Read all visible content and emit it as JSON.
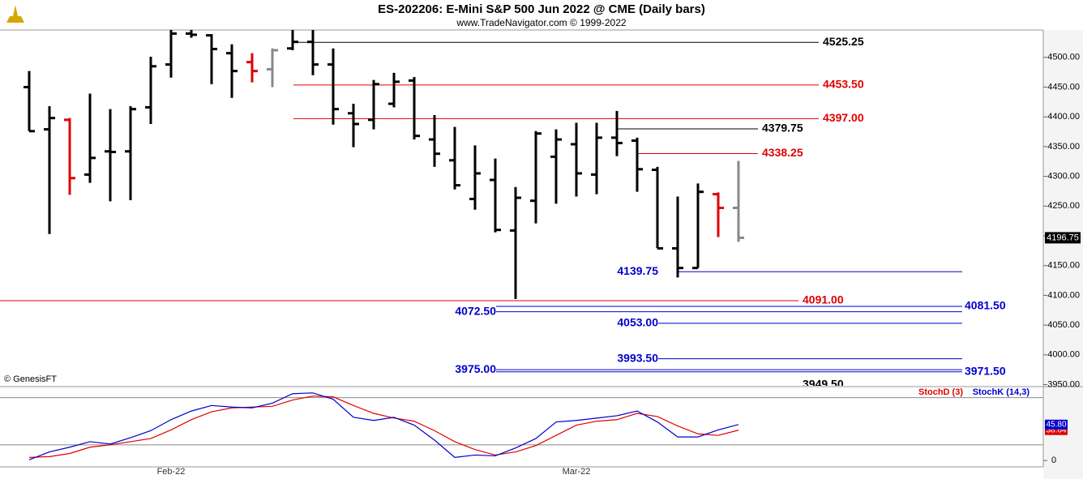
{
  "chart_data": {
    "type": "ohlc",
    "title": "ES-202206:  E-Mini S&P 500 Jun 2022 @ CME  (Daily bars)",
    "subtitle": "www.TradeNavigator.com © 1999-2022",
    "source": "© GenesisFT",
    "categories": [
      null,
      null,
      null,
      null,
      null,
      null,
      null,
      "Feb-22",
      null,
      null,
      null,
      null,
      null,
      null,
      null,
      null,
      null,
      null,
      null,
      null,
      null,
      null,
      null,
      null,
      null,
      null,
      null,
      "Mar-22",
      null,
      null,
      null,
      null,
      null,
      null,
      null,
      null
    ],
    "open": [
      4450,
      4379,
      4395,
      4303,
      4342,
      4342,
      4416,
      4488,
      4540,
      4537,
      4507,
      4492,
      4480,
      4515,
      4526,
      4488,
      4406,
      4395,
      4422,
      4461,
      4362,
      4327,
      4262,
      4294,
      4209,
      4259,
      4333,
      4354,
      4303,
      4365,
      4360,
      4311,
      4179,
      4146,
      4270,
      4247
    ],
    "high": [
      4477,
      4418,
      4398,
      4439,
      4413,
      4418,
      4501,
      4560,
      4548,
      4539,
      4522,
      4507,
      4515,
      4555,
      4560,
      4515,
      4422,
      4462,
      4474,
      4467,
      4403,
      4383,
      4352,
      4330,
      4282,
      4376,
      4379,
      4390,
      4390,
      4410,
      4365,
      4316,
      4266,
      4288,
      4273,
      4326
    ],
    "low": [
      4376,
      4203,
      4269,
      4289,
      4258,
      4260,
      4388,
      4466,
      4533,
      4455,
      4432,
      4458,
      4450,
      4512,
      4470,
      4387,
      4349,
      4379,
      4416,
      4362,
      4316,
      4278,
      4244,
      4206,
      4094,
      4221,
      4254,
      4266,
      4270,
      4334,
      4274,
      4179,
      4130,
      4146,
      4198,
      4190
    ],
    "close": [
      4376,
      4398,
      4297,
      4331,
      4341,
      4413,
      4485,
      4540,
      4538,
      4514,
      4477,
      4477,
      4512,
      4526,
      4488,
      4413,
      4388,
      4455,
      4459,
      4368,
      4338,
      4285,
      4305,
      4210,
      4264,
      4372,
      4362,
      4305,
      4365,
      4356,
      4312,
      4179,
      4146,
      4274,
      4247,
      4196.75
    ],
    "colors": [
      "#000000",
      "#000000",
      "#e00000",
      "#000000",
      "#000000",
      "#000000",
      "#000000",
      "#000000",
      "#000000",
      "#000000",
      "#000000",
      "#e00000",
      "#888888",
      "#000000",
      "#000000",
      "#000000",
      "#000000",
      "#000000",
      "#000000",
      "#000000",
      "#000000",
      "#000000",
      "#000000",
      "#000000",
      "#000000",
      "#000000",
      "#000000",
      "#000000",
      "#000000",
      "#000000",
      "#000000",
      "#000000",
      "#000000",
      "#000000",
      "#e00000",
      "#888888"
    ],
    "close_label": "4196.75",
    "ylim": [
      3948,
      4546
    ],
    "yticks": [
      {
        "value": 3950,
        "label": "3950.00"
      },
      {
        "value": 4000,
        "label": "4000.00"
      },
      {
        "value": 4050,
        "label": "4050.00"
      },
      {
        "value": 4100,
        "label": "4100.00"
      },
      {
        "value": 4150,
        "label": "4150.00"
      },
      {
        "value": 4200,
        "label": "4200.00"
      },
      {
        "value": 4250,
        "label": "4250.00"
      },
      {
        "value": 4300,
        "label": "4300.00"
      },
      {
        "value": 4350,
        "label": "4350.00"
      },
      {
        "value": 4400,
        "label": "4400.00"
      },
      {
        "value": 4450,
        "label": "4450.00"
      },
      {
        "value": 4500,
        "label": "4500.00"
      }
    ],
    "levels": [
      {
        "value": 4525.25,
        "label": "4525.25",
        "color": "#000000"
      },
      {
        "value": 4453.5,
        "label": "4453.50",
        "color": "#e00000"
      },
      {
        "value": 4397,
        "label": "4397.00",
        "color": "#e00000"
      },
      {
        "value": 4379.75,
        "label": "4379.75",
        "color": "#000000"
      },
      {
        "value": 4338.25,
        "label": "4338.25",
        "color": "#e00000"
      },
      {
        "value": 4139.75,
        "label": "4139.75",
        "color": "#0000cc"
      },
      {
        "value": 4091,
        "label": "4091.00",
        "color": "#e00000"
      },
      {
        "value": 4081.5,
        "label": "4081.50",
        "color": "#0000cc"
      },
      {
        "value": 4072.5,
        "label": "4072.50",
        "color": "#0000cc"
      },
      {
        "value": 4053,
        "label": "4053.00",
        "color": "#0000cc"
      },
      {
        "value": 3993.5,
        "label": "3993.50",
        "color": "#0000cc"
      },
      {
        "value": 3975,
        "label": "3975.00",
        "color": "#0000cc"
      },
      {
        "value": 3971.5,
        "label": "3971.50",
        "color": "#0000cc"
      },
      {
        "value": 3949.5,
        "label": "3949.50",
        "color": "#000000"
      }
    ],
    "indicator": {
      "series": [
        {
          "name": "StochD (3)",
          "color": "#e00000",
          "values": [
            4,
            5,
            9,
            17,
            20,
            24,
            28,
            39,
            52,
            62,
            67,
            68,
            69,
            77,
            82,
            81,
            70,
            60,
            54,
            50,
            38,
            24,
            14,
            7,
            11,
            19,
            32,
            45,
            50,
            52,
            60,
            56,
            44,
            34,
            32,
            38.64
          ],
          "value_label": "38.64"
        },
        {
          "name": "StochK (14,3)",
          "color": "#0000cc",
          "values": [
            1,
            11,
            17,
            24,
            21,
            29,
            38,
            52,
            63,
            70,
            68,
            67,
            73,
            85,
            86,
            78,
            55,
            51,
            55,
            45,
            26,
            4,
            7,
            6,
            16,
            28,
            49,
            51,
            54,
            57,
            63,
            49,
            30,
            30,
            39,
            45.8
          ],
          "value_label": "45.80"
        }
      ],
      "y2lim": [
        -8,
        93
      ],
      "y2ticks": [
        0
      ],
      "levels": [
        20,
        80
      ]
    }
  }
}
